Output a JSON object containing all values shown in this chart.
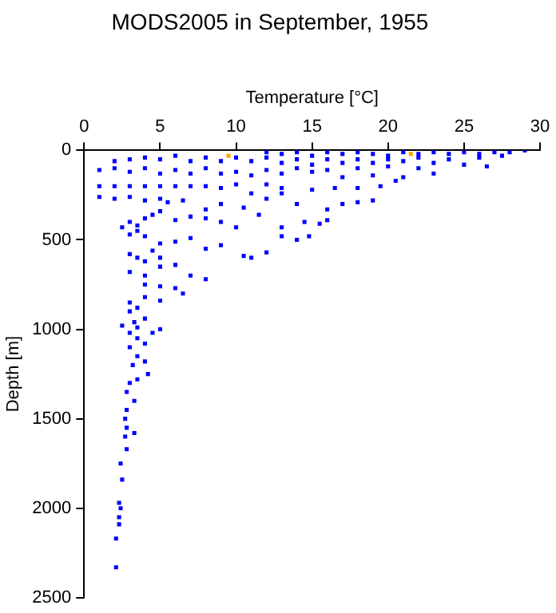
{
  "chart_data": {
    "type": "scatter",
    "title": "MODS2005 in September, 1955",
    "xlabel": "Temperature [°C]",
    "ylabel": "Depth [m]",
    "xlim": [
      0,
      30
    ],
    "xticks": [
      0,
      5,
      10,
      15,
      20,
      25,
      30
    ],
    "ylim": [
      2500,
      0
    ],
    "yticks": [
      0,
      500,
      1000,
      1500,
      2000,
      2500
    ],
    "marker": "square",
    "series": [
      {
        "color": "#0000ff",
        "x": [
          12,
          13,
          14,
          15,
          16,
          17,
          18,
          19,
          20,
          21,
          22,
          23,
          24,
          25,
          26,
          27,
          28,
          29,
          27.5,
          26,
          24,
          22,
          20,
          18,
          16,
          14,
          12,
          10,
          8,
          6,
          4,
          2,
          3,
          5,
          7,
          9,
          11,
          13,
          15,
          17,
          19,
          21,
          23,
          25,
          26.5,
          22,
          20,
          18,
          16,
          14,
          12,
          10,
          8,
          6,
          4,
          2,
          1,
          3,
          5,
          7,
          9,
          11,
          13,
          15,
          17,
          19,
          21,
          23,
          1,
          2,
          3,
          4,
          5,
          6,
          7,
          8,
          9,
          10,
          12,
          13,
          15,
          16.5,
          18,
          19.5,
          20.5,
          1,
          2,
          3,
          4,
          5,
          5.5,
          6.5,
          8,
          9,
          10.5,
          11,
          12,
          13,
          14,
          16,
          17,
          18,
          19,
          3,
          3.5,
          4,
          4.5,
          5,
          6,
          7,
          8,
          9,
          10,
          11.5,
          13,
          14.5,
          15.5,
          16,
          2.5,
          3,
          3.5,
          4,
          5,
          6,
          7,
          8,
          9,
          10.5,
          11,
          12,
          13,
          14,
          14.8,
          3,
          3.5,
          4,
          4.5,
          5,
          3,
          4,
          5,
          6,
          7,
          8,
          4,
          5,
          6,
          6.5,
          3,
          3.5,
          4,
          5,
          3,
          3.3,
          4,
          2.5,
          3.5,
          5,
          4.5,
          3,
          3.5,
          4,
          3,
          3.5,
          3.2,
          4,
          4.2,
          3.5,
          3,
          2.8,
          2.8,
          3.3,
          2.7,
          2.8,
          3.3,
          2.7,
          2.8,
          2.4,
          2.5,
          2.3,
          2.4,
          2.3,
          2.3,
          2.1,
          2.1
        ],
        "values": [
          10,
          20,
          10,
          30,
          10,
          20,
          10,
          20,
          30,
          10,
          20,
          10,
          20,
          10,
          20,
          10,
          10,
          0,
          30,
          40,
          50,
          40,
          50,
          50,
          50,
          50,
          40,
          40,
          40,
          30,
          40,
          60,
          50,
          50,
          60,
          60,
          60,
          70,
          80,
          70,
          70,
          60,
          70,
          80,
          90,
          100,
          90,
          100,
          110,
          100,
          110,
          120,
          100,
          110,
          100,
          100,
          110,
          120,
          130,
          130,
          130,
          140,
          130,
          120,
          150,
          140,
          150,
          130,
          200,
          200,
          200,
          200,
          200,
          200,
          200,
          200,
          210,
          190,
          190,
          210,
          220,
          210,
          210,
          200,
          170,
          260,
          270,
          260,
          280,
          270,
          290,
          280,
          330,
          300,
          320,
          240,
          270,
          240,
          300,
          330,
          300,
          290,
          280,
          400,
          420,
          380,
          360,
          340,
          390,
          370,
          380,
          400,
          430,
          360,
          430,
          400,
          410,
          390,
          430,
          470,
          450,
          480,
          520,
          510,
          490,
          550,
          530,
          590,
          600,
          570,
          480,
          500,
          480,
          580,
          600,
          620,
          560,
          600,
          680,
          700,
          650,
          640,
          700,
          720,
          750,
          760,
          770,
          800,
          850,
          880,
          820,
          840,
          900,
          960,
          940,
          980,
          990,
          1000,
          1020,
          1020,
          1050,
          1080,
          1100,
          1150,
          1200,
          1180,
          1250,
          1280,
          1300,
          1350,
          1450,
          1400,
          1500,
          1550,
          1580,
          1600,
          1670,
          1750,
          1840,
          1970,
          2000,
          2050,
          2090,
          2170,
          2330
        ]
      },
      {
        "color": "#ffa500",
        "x": [
          9.5,
          21.5
        ],
        "values": [
          30,
          20
        ]
      }
    ]
  }
}
